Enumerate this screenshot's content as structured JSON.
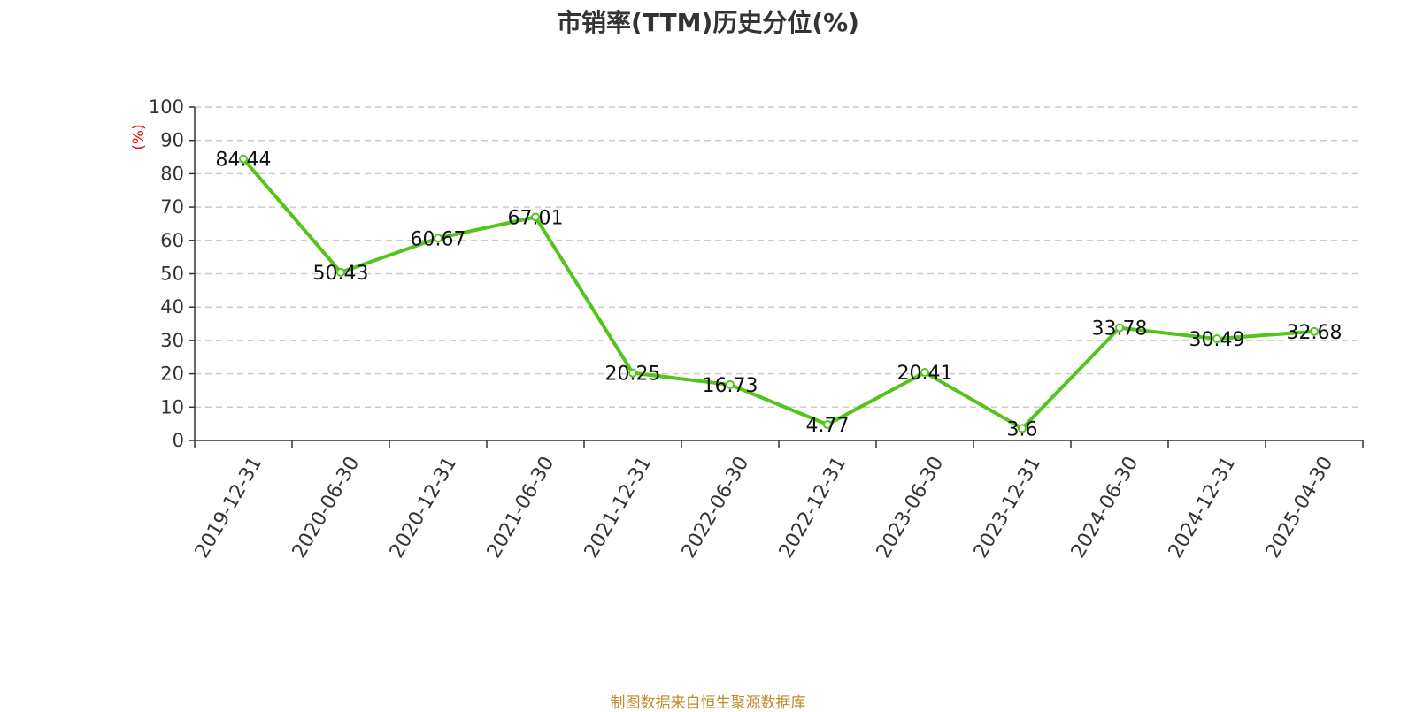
{
  "chart_data": {
    "type": "line",
    "title": "市销率(TTM)历史分位(%)",
    "ylabel": "(%)",
    "xlabel": "",
    "ylim": [
      0,
      100
    ],
    "yticks": [
      0,
      10,
      20,
      30,
      40,
      50,
      60,
      70,
      80,
      90,
      100
    ],
    "grid": true,
    "categories": [
      "2019-12-31",
      "2020-06-30",
      "2020-12-31",
      "2021-06-30",
      "2021-12-31",
      "2022-06-30",
      "2022-12-31",
      "2023-06-30",
      "2023-12-31",
      "2024-06-30",
      "2024-12-31",
      "2025-04-30"
    ],
    "series": [
      {
        "values": [
          84.44,
          50.43,
          60.67,
          67.01,
          20.25,
          16.73,
          4.77,
          20.41,
          3.6,
          33.78,
          30.49,
          32.68
        ],
        "labels": [
          "84.44",
          "50.43",
          "60.67",
          "67.01",
          "20.25",
          "16.73",
          "4.77",
          "20.41",
          "3.6",
          "33.78",
          "30.49",
          "32.68"
        ],
        "color": "#52c41a"
      }
    ],
    "colors": {
      "ylabel": "#e60000",
      "grid": "#cccccc",
      "axis": "#333333"
    }
  },
  "footer": {
    "source": "制图数据来自恒生聚源数据库",
    "color": "#c08a2a"
  }
}
